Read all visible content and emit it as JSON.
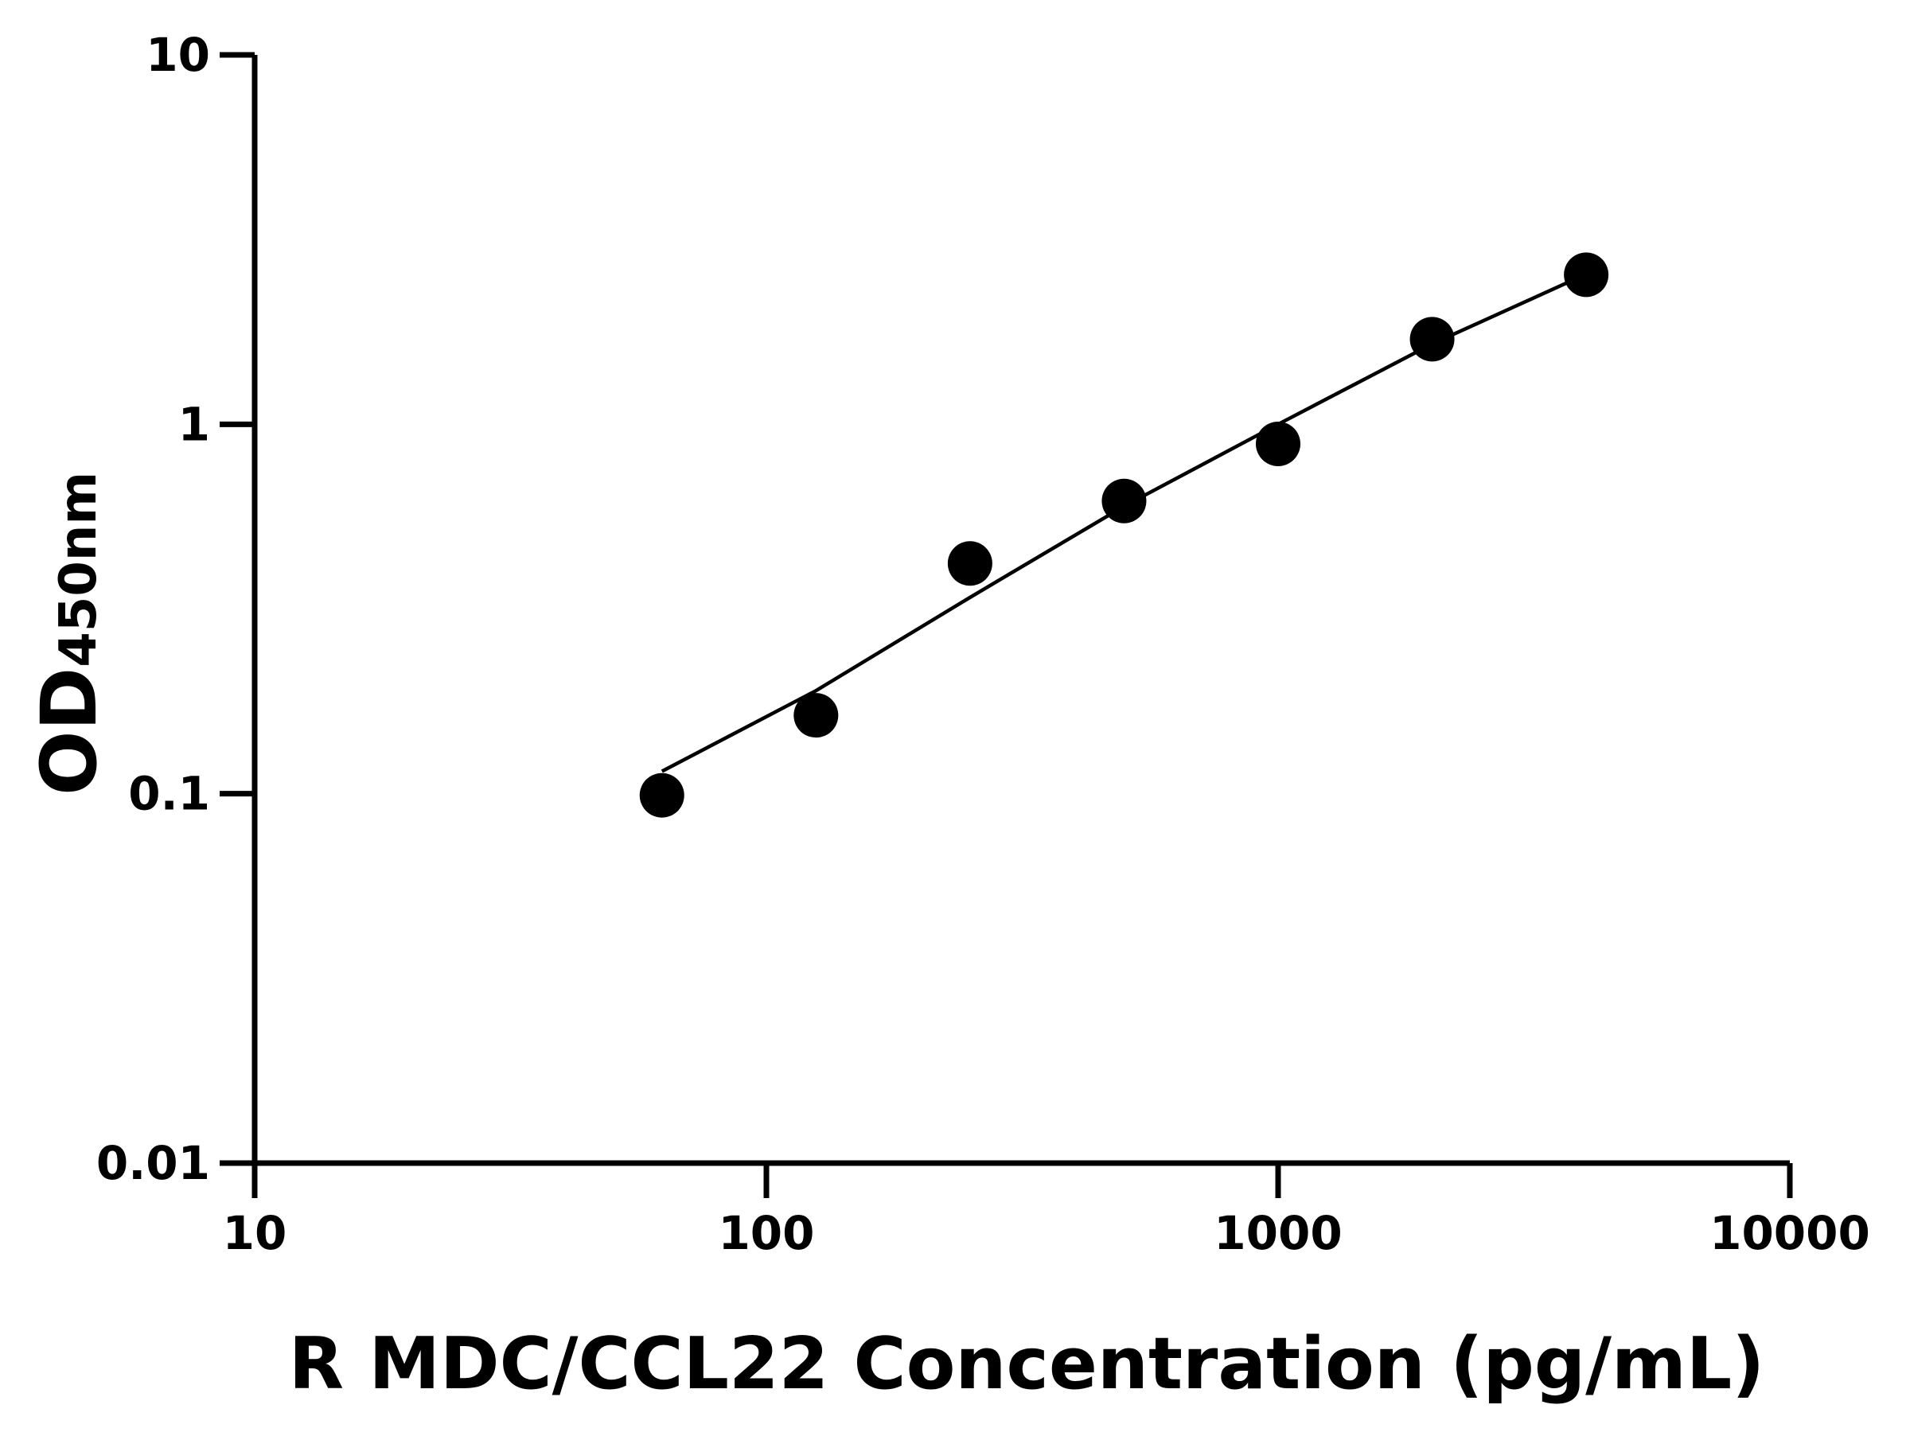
{
  "chart_data": {
    "type": "scatter",
    "title": "",
    "xlabel": "R MDC/CCL22 Concentration (pg/mL)",
    "ylabel_main": "OD",
    "ylabel_sub": "450nm",
    "x_scale": "log",
    "y_scale": "log",
    "xlim": [
      10,
      10000
    ],
    "ylim": [
      0.01,
      10
    ],
    "x_ticks": [
      "10",
      "100",
      "1000",
      "10000"
    ],
    "y_ticks": [
      "0.01",
      "0.1",
      "1",
      "10"
    ],
    "grid": false,
    "points": [
      {
        "x": 62.5,
        "y": 0.099
      },
      {
        "x": 125,
        "y": 0.163
      },
      {
        "x": 250,
        "y": 0.42
      },
      {
        "x": 500,
        "y": 0.62
      },
      {
        "x": 1000,
        "y": 0.885
      },
      {
        "x": 2000,
        "y": 1.7
      },
      {
        "x": 4000,
        "y": 2.54
      }
    ],
    "fit_curve": [
      {
        "x": 62.5,
        "y": 0.115
      },
      {
        "x": 125,
        "y": 0.19
      },
      {
        "x": 250,
        "y": 0.34
      },
      {
        "x": 500,
        "y": 0.6
      },
      {
        "x": 1000,
        "y": 1.0
      },
      {
        "x": 2000,
        "y": 1.65
      },
      {
        "x": 4000,
        "y": 2.55
      }
    ],
    "colors": {
      "points": "#000000",
      "line": "#000000",
      "axes": "#000000"
    }
  }
}
